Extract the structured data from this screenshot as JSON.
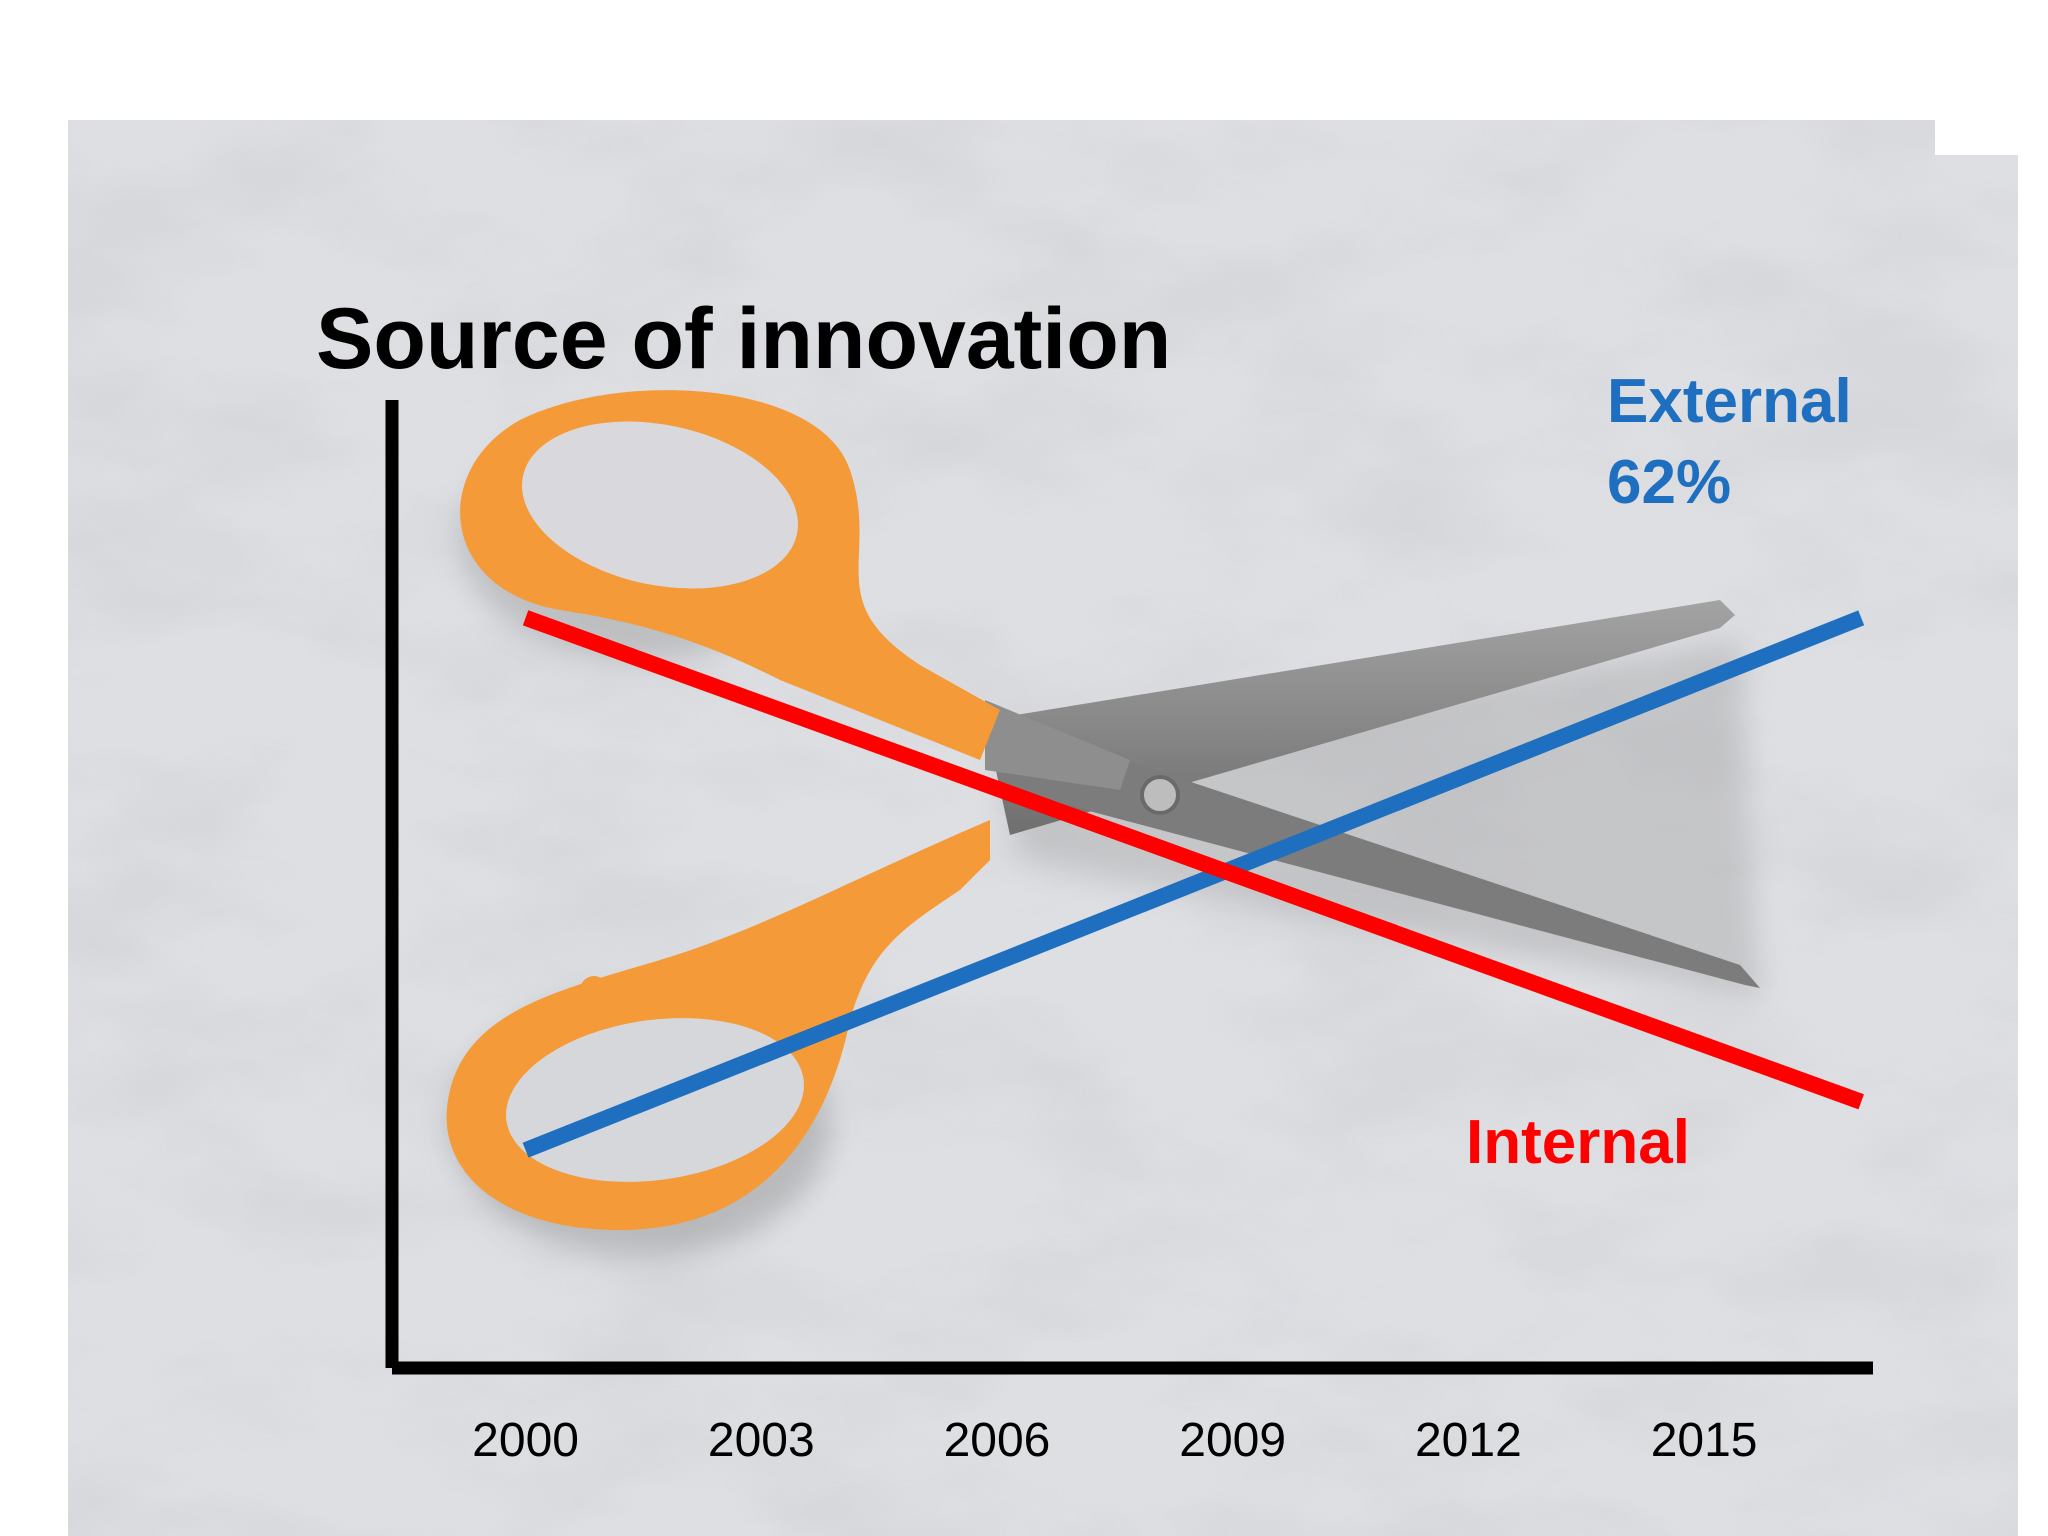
{
  "chart_data": {
    "type": "line",
    "title": "Source of innovation",
    "xlabel": "",
    "ylabel": "",
    "x_ticks": [
      "2000",
      "2003",
      "2006",
      "2009",
      "2012",
      "2015"
    ],
    "grid": false,
    "series": [
      {
        "name": "External",
        "annotation": "62%",
        "color": "#1f6fc0",
        "points": [
          {
            "x": 2000,
            "y": 18
          },
          {
            "x": 2017,
            "y": 62
          }
        ]
      },
      {
        "name": "Internal",
        "color": "#ff0000",
        "points": [
          {
            "x": 2000,
            "y": 62
          },
          {
            "x": 2017,
            "y": 22
          }
        ]
      }
    ]
  },
  "colors": {
    "axis": "#000000",
    "external": "#1f6fc0",
    "internal": "#ff0000",
    "scissor_handle": "#f59a38",
    "scissor_blade": "#8a8a8a",
    "background": "#dcdde0"
  },
  "background_image": "scissors-on-marble"
}
